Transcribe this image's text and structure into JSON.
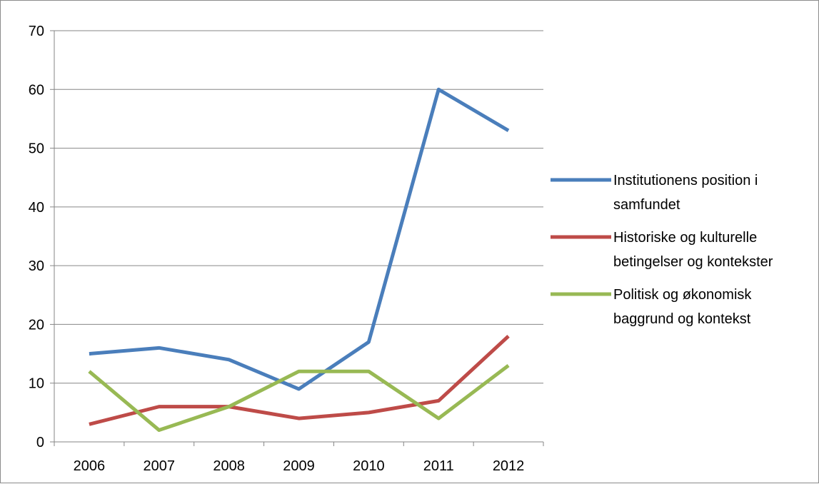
{
  "chart_data": {
    "type": "line",
    "title": "",
    "xlabel": "",
    "ylabel": "",
    "x": [
      "2006",
      "2007",
      "2008",
      "2009",
      "2010",
      "2011",
      "2012"
    ],
    "ylim": [
      0,
      70
    ],
    "yticks": [
      "0",
      "10",
      "20",
      "30",
      "40",
      "50",
      "60",
      "70"
    ],
    "grid": "horizontal",
    "legend_position": "right",
    "series": [
      {
        "name": "Institutionens position i samfundet",
        "legend_lines": [
          "Institutionens position i",
          "samfundet"
        ],
        "color": "#4a7ebb",
        "values": [
          15,
          16,
          14,
          9,
          17,
          60,
          53
        ]
      },
      {
        "name": "Historiske og kulturelle betingelser og kontekster",
        "legend_lines": [
          "Historiske og kulturelle",
          "betingelser og kontekster"
        ],
        "color": "#be4b48",
        "values": [
          3,
          6,
          6,
          4,
          5,
          7,
          18
        ]
      },
      {
        "name": "Politisk og økonomisk baggrund og kontekst",
        "legend_lines": [
          "Politisk og økonomisk",
          "baggrund og kontekst"
        ],
        "color": "#98b954",
        "values": [
          12,
          2,
          6,
          12,
          12,
          4,
          13
        ]
      }
    ]
  }
}
